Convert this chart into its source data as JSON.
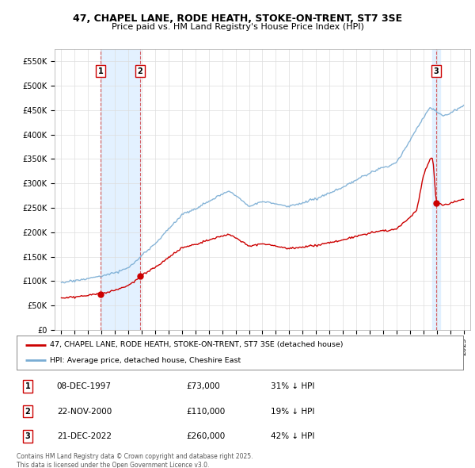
{
  "title": "47, CHAPEL LANE, RODE HEATH, STOKE-ON-TRENT, ST7 3SE",
  "subtitle": "Price paid vs. HM Land Registry's House Price Index (HPI)",
  "red_label": "47, CHAPEL LANE, RODE HEATH, STOKE-ON-TRENT, ST7 3SE (detached house)",
  "blue_label": "HPI: Average price, detached house, Cheshire East",
  "sales": [
    {
      "num": 1,
      "date": "08-DEC-1997",
      "price": 73000,
      "pct": "31% ↓ HPI",
      "year": 1997.92
    },
    {
      "num": 2,
      "date": "22-NOV-2000",
      "price": 110000,
      "pct": "19% ↓ HPI",
      "year": 2000.88
    },
    {
      "num": 3,
      "date": "21-DEC-2022",
      "price": 260000,
      "pct": "42% ↓ HPI",
      "year": 2022.96
    }
  ],
  "footnote": "Contains HM Land Registry data © Crown copyright and database right 2025.\nThis data is licensed under the Open Government Licence v3.0.",
  "ylim": [
    0,
    575000
  ],
  "xlim": [
    1994.5,
    2025.5
  ],
  "yticks": [
    0,
    50000,
    100000,
    150000,
    200000,
    250000,
    300000,
    350000,
    400000,
    450000,
    500000,
    550000
  ],
  "ytick_labels": [
    "£0",
    "£50K",
    "£100K",
    "£150K",
    "£200K",
    "£250K",
    "£300K",
    "£350K",
    "£400K",
    "£450K",
    "£500K",
    "£550K"
  ],
  "xticks": [
    1995,
    1996,
    1997,
    1998,
    1999,
    2000,
    2001,
    2002,
    2003,
    2004,
    2005,
    2006,
    2007,
    2008,
    2009,
    2010,
    2011,
    2012,
    2013,
    2014,
    2015,
    2016,
    2017,
    2018,
    2019,
    2020,
    2021,
    2022,
    2023,
    2024,
    2025
  ],
  "red_color": "#cc0000",
  "blue_color": "#7aadd4",
  "shade_color": "#ddeeff",
  "background_color": "#ffffff",
  "grid_color": "#dddddd"
}
